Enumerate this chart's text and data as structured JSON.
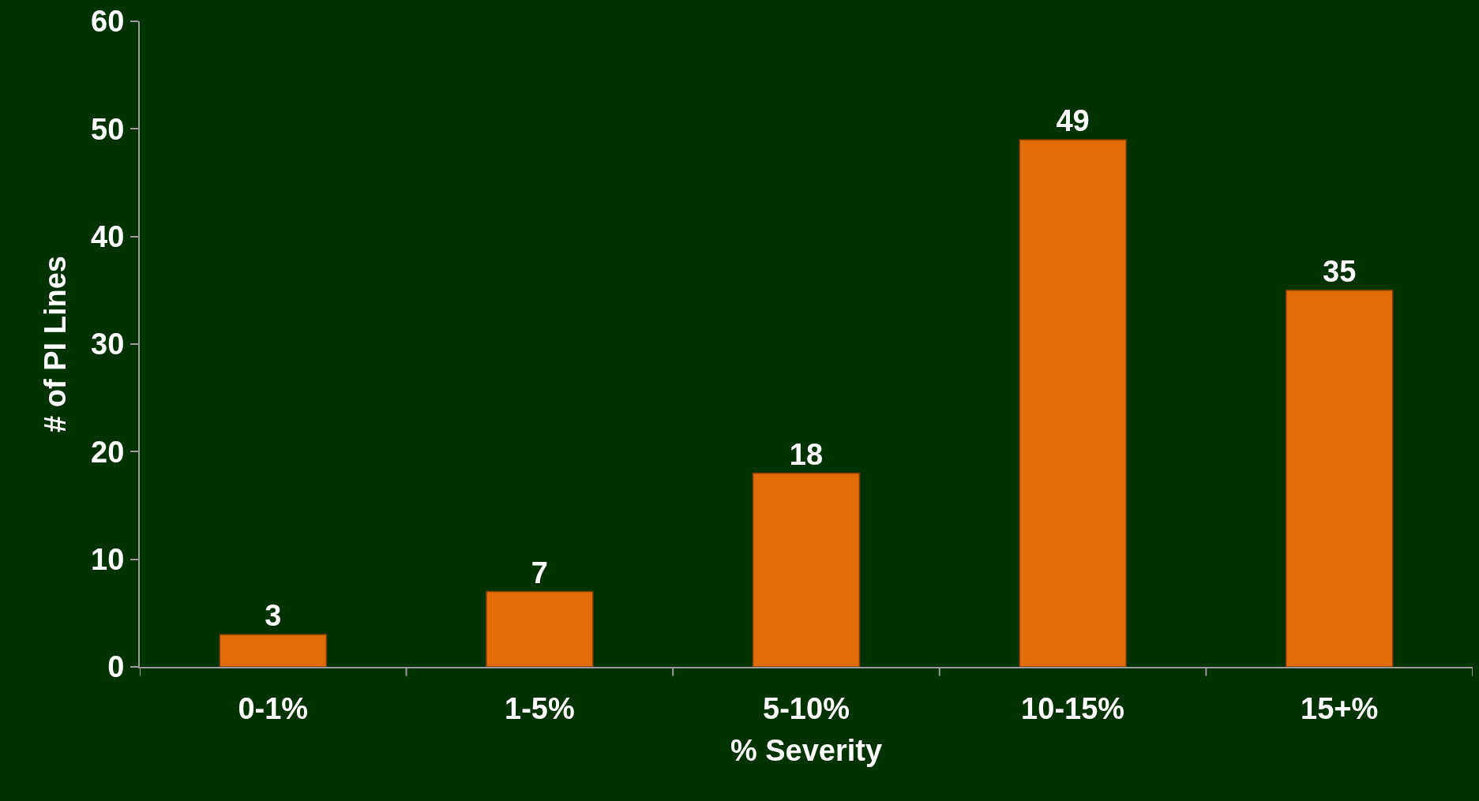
{
  "chart_data": {
    "type": "bar",
    "xlabel": "% Severity",
    "ylabel": "# of PI Lines",
    "categories": [
      "0-1%",
      "1-5%",
      "5-10%",
      "10-15%",
      "15+%"
    ],
    "values": [
      3,
      7,
      18,
      49,
      35
    ],
    "color": "#e36c0a",
    "ylim": [
      0,
      60
    ],
    "yticks": [
      0,
      10,
      20,
      30,
      40,
      50,
      60
    ],
    "grid": false,
    "data_labels": true
  }
}
